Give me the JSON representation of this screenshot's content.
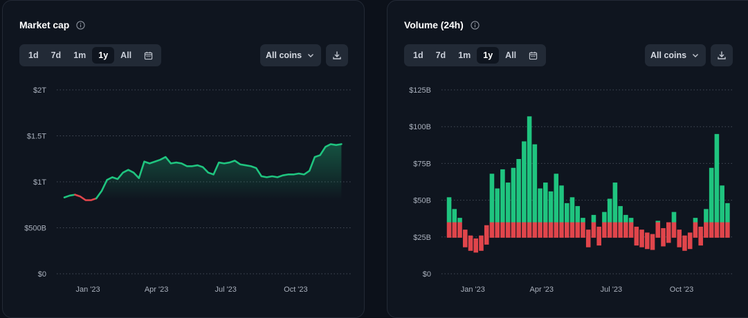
{
  "left": {
    "title": "Market cap",
    "ranges": [
      "1d",
      "7d",
      "1m",
      "1y",
      "All"
    ],
    "active_range": "1y",
    "coin_select": "All coins",
    "icons": {
      "info": "info-icon",
      "calendar": "calendar-icon",
      "chevron": "chevron-down-icon",
      "download": "download-icon"
    }
  },
  "right": {
    "title": "Volume (24h)",
    "ranges": [
      "1d",
      "7d",
      "1m",
      "1y",
      "All"
    ],
    "active_range": "1y",
    "coin_select": "All coins",
    "icons": {
      "info": "info-icon",
      "calendar": "calendar-icon",
      "chevron": "chevron-down-icon",
      "download": "download-icon"
    }
  },
  "colors": {
    "up": "#1fc47f",
    "down": "#e0454b",
    "grid": "#454c58",
    "panel": "#0f151f"
  },
  "chart_data": [
    {
      "type": "line",
      "title": "Market cap",
      "x": [
        "2022-12-01",
        "2022-12-08",
        "2022-12-15",
        "2022-12-22",
        "2022-12-29",
        "2023-01-05",
        "2023-01-12",
        "2023-01-19",
        "2023-01-26",
        "2023-02-02",
        "2023-02-09",
        "2023-02-16",
        "2023-02-23",
        "2023-03-02",
        "2023-03-09",
        "2023-03-16",
        "2023-03-23",
        "2023-03-30",
        "2023-04-06",
        "2023-04-13",
        "2023-04-20",
        "2023-04-27",
        "2023-05-04",
        "2023-05-11",
        "2023-05-18",
        "2023-05-25",
        "2023-06-01",
        "2023-06-08",
        "2023-06-15",
        "2023-06-22",
        "2023-06-29",
        "2023-07-06",
        "2023-07-13",
        "2023-07-20",
        "2023-07-27",
        "2023-08-03",
        "2023-08-10",
        "2023-08-17",
        "2023-08-24",
        "2023-08-31",
        "2023-09-07",
        "2023-09-14",
        "2023-09-21",
        "2023-09-28",
        "2023-10-05",
        "2023-10-12",
        "2023-10-19",
        "2023-10-26",
        "2023-11-02",
        "2023-11-09",
        "2023-11-16",
        "2023-11-23",
        "2023-11-30"
      ],
      "series": [
        {
          "values": [
            0.83,
            0.85,
            0.86,
            0.84,
            0.8,
            0.8,
            0.82,
            0.9,
            1.02,
            1.05,
            1.03,
            1.1,
            1.13,
            1.1,
            1.04,
            1.22,
            1.2,
            1.22,
            1.24,
            1.27,
            1.2,
            1.21,
            1.2,
            1.17,
            1.17,
            1.18,
            1.16,
            1.1,
            1.08,
            1.21,
            1.2,
            1.21,
            1.23,
            1.19,
            1.18,
            1.17,
            1.15,
            1.06,
            1.05,
            1.06,
            1.05,
            1.07,
            1.08,
            1.08,
            1.09,
            1.08,
            1.12,
            1.27,
            1.29,
            1.38,
            1.41,
            1.4,
            1.41
          ]
        }
      ],
      "direction_segments": [
        {
          "from": "2022-12-01",
          "to": "2022-12-15",
          "direction": "up"
        },
        {
          "from": "2022-12-15",
          "to": "2023-01-12",
          "direction": "down"
        },
        {
          "from": "2023-01-12",
          "to": "2023-11-30",
          "direction": "up"
        }
      ],
      "x_ticks": [
        "Jan '23",
        "Apr '23",
        "Jul '23",
        "Oct '23"
      ],
      "x_tick_dates": [
        "2023-01-01",
        "2023-04-01",
        "2023-07-01",
        "2023-10-01"
      ],
      "y_ticks": [
        0,
        0.5,
        1,
        1.5,
        2
      ],
      "y_tick_labels": [
        "$0",
        "$500B",
        "$1T",
        "$1.5T",
        "$2T"
      ],
      "ylim": [
        0,
        2
      ],
      "xlim": [
        "2022-11-21",
        "2023-12-06"
      ],
      "area_fill": true,
      "grid": "horizontal dotted"
    },
    {
      "type": "bar",
      "title": "Volume (24h)",
      "x": [
        "2022-12-01",
        "2022-12-08",
        "2022-12-15",
        "2022-12-22",
        "2022-12-29",
        "2023-01-05",
        "2023-01-12",
        "2023-01-19",
        "2023-01-26",
        "2023-02-02",
        "2023-02-09",
        "2023-02-16",
        "2023-02-23",
        "2023-03-02",
        "2023-03-09",
        "2023-03-16",
        "2023-03-23",
        "2023-03-30",
        "2023-04-06",
        "2023-04-13",
        "2023-04-20",
        "2023-04-27",
        "2023-05-04",
        "2023-05-11",
        "2023-05-18",
        "2023-05-25",
        "2023-06-01",
        "2023-06-08",
        "2023-06-15",
        "2023-06-22",
        "2023-06-29",
        "2023-07-06",
        "2023-07-13",
        "2023-07-20",
        "2023-07-27",
        "2023-08-03",
        "2023-08-10",
        "2023-08-17",
        "2023-08-24",
        "2023-08-31",
        "2023-09-07",
        "2023-09-14",
        "2023-09-21",
        "2023-09-28",
        "2023-10-05",
        "2023-10-12",
        "2023-10-19",
        "2023-10-26",
        "2023-11-02",
        "2023-11-09",
        "2023-11-16",
        "2023-11-23",
        "2023-11-30"
      ],
      "series": [
        {
          "values": [
            52,
            44,
            38,
            30,
            26,
            24,
            26,
            33,
            68,
            58,
            71,
            62,
            72,
            78,
            90,
            107,
            88,
            58,
            62,
            56,
            68,
            60,
            48,
            52,
            46,
            38,
            30,
            40,
            32,
            42,
            51,
            62,
            46,
            40,
            38,
            32,
            30,
            28,
            27,
            36,
            31,
            35,
            42,
            30,
            26,
            28,
            38,
            32,
            44,
            72,
            95,
            60,
            48
          ]
        }
      ],
      "split_level": 35,
      "color_above_split": "up",
      "color_below_split": "down",
      "x_ticks": [
        "Jan '23",
        "Apr '23",
        "Jul '23",
        "Oct '23"
      ],
      "x_tick_dates": [
        "2023-01-01",
        "2023-04-01",
        "2023-07-01",
        "2023-10-01"
      ],
      "y_ticks": [
        0,
        25,
        50,
        75,
        100,
        125
      ],
      "y_tick_labels": [
        "$0",
        "$25B",
        "$50B",
        "$75B",
        "$100B",
        "$125B"
      ],
      "ylim": [
        0,
        125
      ],
      "xlim": [
        "2022-11-21",
        "2023-12-06"
      ],
      "grid": "horizontal dotted"
    }
  ]
}
